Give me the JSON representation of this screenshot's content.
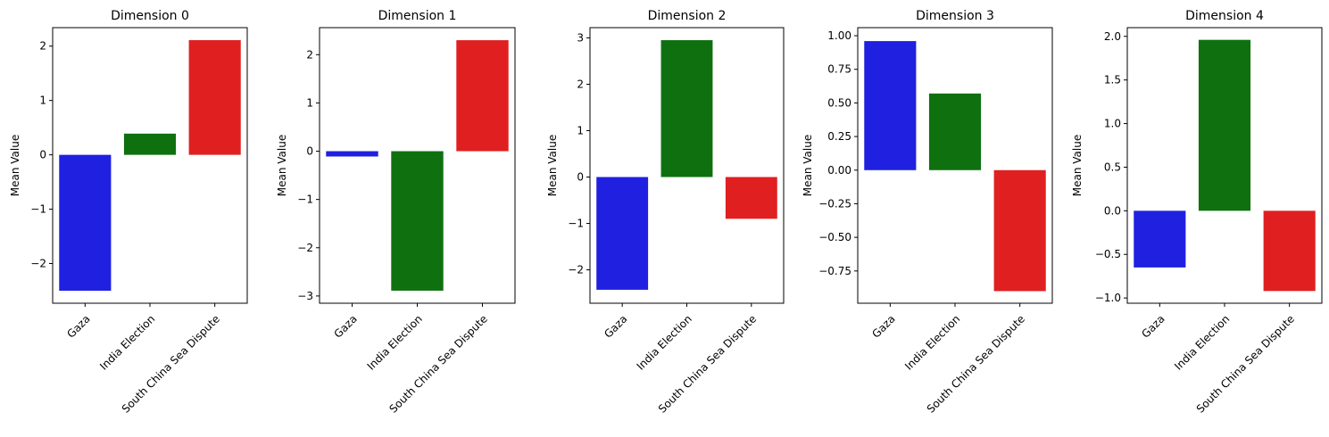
{
  "chart_data": [
    {
      "type": "bar",
      "title": "Dimension 0",
      "ylabel": "Mean Value",
      "xlabel": "",
      "categories": [
        "Gaza",
        "India Election",
        "South China Sea Dispute"
      ],
      "values": [
        -2.5,
        0.39,
        2.11
      ],
      "colors": [
        "#2020e0",
        "#0f7010",
        "#e02020"
      ],
      "ylim": [
        -2.73,
        2.34
      ],
      "yticks": [
        -2,
        -1,
        0,
        1,
        2
      ],
      "yticklabels": [
        "−2",
        "−1",
        "0",
        "1",
        "2"
      ],
      "grid": false
    },
    {
      "type": "bar",
      "title": "Dimension 1",
      "ylabel": "Mean Value",
      "xlabel": "",
      "categories": [
        "Gaza",
        "India Election",
        "South China Sea Dispute"
      ],
      "values": [
        -0.11,
        -2.89,
        2.3
      ],
      "colors": [
        "#2020e0",
        "#0f7010",
        "#e02020"
      ],
      "ylim": [
        -3.15,
        2.56
      ],
      "yticks": [
        -3,
        -2,
        -1,
        0,
        1,
        2
      ],
      "yticklabels": [
        "−3",
        "−2",
        "−1",
        "0",
        "1",
        "2"
      ],
      "grid": false
    },
    {
      "type": "bar",
      "title": "Dimension 2",
      "ylabel": "Mean Value",
      "xlabel": "",
      "categories": [
        "Gaza",
        "India Election",
        "South China Sea Dispute"
      ],
      "values": [
        -2.43,
        2.95,
        -0.9
      ],
      "colors": [
        "#2020e0",
        "#0f7010",
        "#e02020"
      ],
      "ylim": [
        -2.72,
        3.22
      ],
      "yticks": [
        -2,
        -1,
        0,
        1,
        2,
        3
      ],
      "yticklabels": [
        "−2",
        "−1",
        "0",
        "1",
        "2",
        "3"
      ],
      "grid": false
    },
    {
      "type": "bar",
      "title": "Dimension 3",
      "ylabel": "Mean Value",
      "xlabel": "",
      "categories": [
        "Gaza",
        "India Election",
        "South China Sea Dispute"
      ],
      "values": [
        0.96,
        0.57,
        -0.9
      ],
      "colors": [
        "#2020e0",
        "#0f7010",
        "#e02020"
      ],
      "ylim": [
        -0.99,
        1.06
      ],
      "yticks": [
        -0.75,
        -0.5,
        -0.25,
        0.0,
        0.25,
        0.5,
        0.75,
        1.0
      ],
      "yticklabels": [
        "−0.75",
        "−0.50",
        "−0.25",
        "0.00",
        "0.25",
        "0.50",
        "0.75",
        "1.00"
      ],
      "grid": false
    },
    {
      "type": "bar",
      "title": "Dimension 4",
      "ylabel": "Mean Value",
      "xlabel": "",
      "categories": [
        "Gaza",
        "India Election",
        "South China Sea Dispute"
      ],
      "values": [
        -0.65,
        1.96,
        -0.92
      ],
      "colors": [
        "#2020e0",
        "#0f7010",
        "#e02020"
      ],
      "ylim": [
        -1.06,
        2.1
      ],
      "yticks": [
        -1.0,
        -0.5,
        0.0,
        0.5,
        1.0,
        1.5,
        2.0
      ],
      "yticklabels": [
        "−1.0",
        "−0.5",
        "0.0",
        "0.5",
        "1.0",
        "1.5",
        "2.0"
      ],
      "grid": false
    }
  ]
}
